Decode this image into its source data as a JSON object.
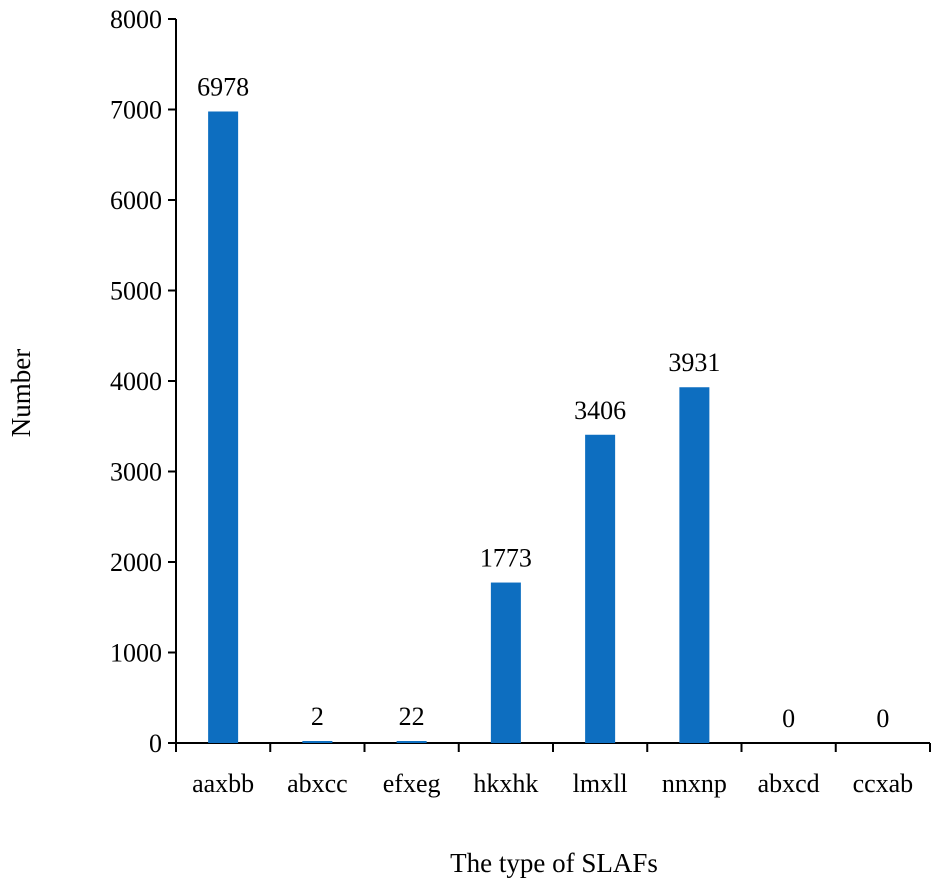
{
  "chart_data": {
    "type": "bar",
    "title": "",
    "xlabel": "The type of SLAFs",
    "ylabel": "Number",
    "categories": [
      "aaxbb",
      "abxcc",
      "efxeg",
      "hkxhk",
      "lmxll",
      "nnxnp",
      "abxcd",
      "ccxab"
    ],
    "values": [
      6978,
      2,
      22,
      1773,
      3406,
      3931,
      0,
      0
    ],
    "data_labels": [
      "6978",
      "2",
      "22",
      "1773",
      "3406",
      "3931",
      "0",
      "0"
    ],
    "ylim": [
      0,
      8000
    ],
    "yticks": [
      0,
      1000,
      2000,
      3000,
      4000,
      5000,
      6000,
      7000,
      8000
    ],
    "ytick_labels": [
      "0",
      "1000",
      "2000",
      "3000",
      "4000",
      "5000",
      "6000",
      "7000",
      "8000"
    ],
    "grid": false,
    "legend": "none",
    "bar_color": "#0d6ec0"
  }
}
